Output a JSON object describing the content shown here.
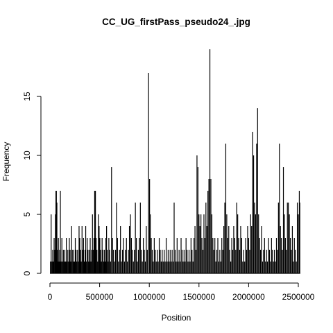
{
  "chart_data": {
    "type": "bar",
    "title": "CC_UG_firstPass_pseudo24_.jpg",
    "xlabel": "Position",
    "ylabel": "Frequency",
    "xlim": [
      0,
      2520000
    ],
    "ylim": [
      0,
      19
    ],
    "grid": false,
    "legend": "none",
    "x_ticks": [
      0,
      500000,
      1000000,
      1500000,
      2000000,
      2500000
    ],
    "x_tick_labels": [
      "0",
      "500000",
      "1000000",
      "1500000",
      "2000000",
      "2500000"
    ],
    "y_ticks": [
      0,
      5,
      10,
      15
    ],
    "y_tick_labels": [
      "0",
      "5",
      "10",
      "15"
    ],
    "bar_color": "#000000",
    "x": [
      5000,
      12000,
      20000,
      28000,
      35000,
      42000,
      50000,
      55000,
      60000,
      65000,
      70000,
      75000,
      80000,
      85000,
      90000,
      98000,
      105000,
      112000,
      120000,
      128000,
      135000,
      142000,
      150000,
      158000,
      165000,
      172000,
      180000,
      188000,
      195000,
      203000,
      210000,
      218000,
      225000,
      233000,
      240000,
      248000,
      255000,
      263000,
      270000,
      278000,
      285000,
      293000,
      300000,
      308000,
      315000,
      323000,
      330000,
      338000,
      345000,
      353000,
      360000,
      368000,
      375000,
      383000,
      390000,
      398000,
      405000,
      413000,
      420000,
      428000,
      435000,
      443000,
      450000,
      458000,
      465000,
      473000,
      480000,
      488000,
      495000,
      502000,
      510000,
      518000,
      525000,
      533000,
      540000,
      548000,
      555000,
      563000,
      570000,
      578000,
      585000,
      593000,
      600000,
      610000,
      620000,
      630000,
      640000,
      650000,
      660000,
      670000,
      680000,
      690000,
      700000,
      710000,
      720000,
      730000,
      740000,
      750000,
      760000,
      770000,
      780000,
      790000,
      800000,
      810000,
      820000,
      830000,
      840000,
      850000,
      860000,
      870000,
      880000,
      890000,
      900000,
      910000,
      920000,
      930000,
      940000,
      950000,
      960000,
      970000,
      980000,
      992000,
      1003000,
      1010000,
      1020000,
      1030000,
      1040000,
      1050000,
      1060000,
      1070000,
      1080000,
      1090000,
      1100000,
      1110000,
      1120000,
      1130000,
      1140000,
      1150000,
      1160000,
      1170000,
      1180000,
      1190000,
      1200000,
      1210000,
      1220000,
      1230000,
      1240000,
      1250000,
      1260000,
      1270000,
      1280000,
      1290000,
      1300000,
      1310000,
      1320000,
      1330000,
      1340000,
      1350000,
      1360000,
      1370000,
      1380000,
      1390000,
      1400000,
      1410000,
      1420000,
      1430000,
      1440000,
      1450000,
      1460000,
      1470000,
      1480000,
      1490000,
      1500000,
      1510000,
      1520000,
      1530000,
      1540000,
      1550000,
      1560000,
      1570000,
      1580000,
      1590000,
      1600000,
      1610000,
      1620000,
      1630000,
      1640000,
      1650000,
      1660000,
      1670000,
      1680000,
      1690000,
      1700000,
      1710000,
      1720000,
      1730000,
      1740000,
      1750000,
      1760000,
      1770000,
      1780000,
      1790000,
      1800000,
      1810000,
      1820000,
      1830000,
      1840000,
      1850000,
      1860000,
      1870000,
      1880000,
      1890000,
      1900000,
      1910000,
      1920000,
      1930000,
      1940000,
      1950000,
      1960000,
      1970000,
      1980000,
      1990000,
      2000000,
      2010000,
      2020000,
      2030000,
      2040000,
      2050000,
      2060000,
      2070000,
      2080000,
      2090000,
      2100000,
      2110000,
      2120000,
      2130000,
      2140000,
      2150000,
      2160000,
      2170000,
      2180000,
      2190000,
      2200000,
      2210000,
      2220000,
      2230000,
      2240000,
      2250000,
      2260000,
      2270000,
      2280000,
      2290000,
      2300000,
      2310000,
      2320000,
      2330000,
      2340000,
      2350000,
      2360000,
      2370000,
      2380000,
      2390000,
      2400000,
      2410000,
      2420000,
      2430000,
      2440000,
      2450000,
      2460000,
      2470000,
      2480000,
      2490000,
      2500000,
      2510000,
      2515000
    ],
    "values": [
      1,
      5,
      1,
      2,
      1,
      3,
      2,
      5,
      7,
      7,
      6,
      2,
      1,
      3,
      1,
      2,
      7,
      1,
      3,
      1,
      2,
      1,
      2,
      1,
      3,
      1,
      2,
      1,
      3,
      2,
      1,
      4,
      2,
      1,
      2,
      1,
      3,
      2,
      1,
      2,
      1,
      4,
      3,
      2,
      1,
      4,
      2,
      3,
      1,
      2,
      4,
      1,
      3,
      2,
      1,
      2,
      3,
      1,
      2,
      5,
      2,
      3,
      7,
      7,
      3,
      2,
      1,
      5,
      4,
      3,
      2,
      1,
      3,
      2,
      1,
      2,
      1,
      3,
      4,
      2,
      1,
      3,
      2,
      1,
      9,
      3,
      2,
      1,
      2,
      6,
      3,
      1,
      2,
      4,
      1,
      2,
      3,
      1,
      2,
      3,
      1,
      2,
      4,
      5,
      3,
      2,
      1,
      2,
      6,
      3,
      1,
      2,
      3,
      6,
      2,
      1,
      3,
      2,
      1,
      4,
      2,
      17,
      8,
      5,
      3,
      2,
      1,
      3,
      2,
      1,
      2,
      1,
      3,
      2,
      1,
      2,
      1,
      2,
      1,
      3,
      1,
      2,
      1,
      2,
      1,
      2,
      1,
      6,
      2,
      1,
      3,
      1,
      2,
      1,
      3,
      2,
      1,
      2,
      1,
      3,
      2,
      1,
      2,
      1,
      3,
      2,
      1,
      3,
      4,
      2,
      10,
      9,
      5,
      4,
      5,
      3,
      2,
      5,
      3,
      6,
      4,
      7,
      8,
      19,
      8,
      5,
      3,
      2,
      3,
      1,
      2,
      3,
      1,
      2,
      1,
      3,
      2,
      4,
      6,
      11,
      5,
      3,
      4,
      2,
      1,
      3,
      2,
      4,
      3,
      2,
      6,
      5,
      3,
      2,
      4,
      3,
      1,
      2,
      1,
      3,
      2,
      4,
      3,
      2,
      5,
      4,
      12,
      10,
      6,
      5,
      11,
      14,
      5,
      3,
      2,
      4,
      1,
      2,
      3,
      1,
      2,
      1,
      3,
      2,
      1,
      3,
      2,
      1,
      2,
      1,
      3,
      2,
      6,
      11,
      4,
      3,
      2,
      9,
      5,
      3,
      2,
      6,
      6,
      5,
      3,
      2,
      4,
      1,
      3,
      2,
      1,
      6,
      5,
      7,
      6
    ]
  }
}
